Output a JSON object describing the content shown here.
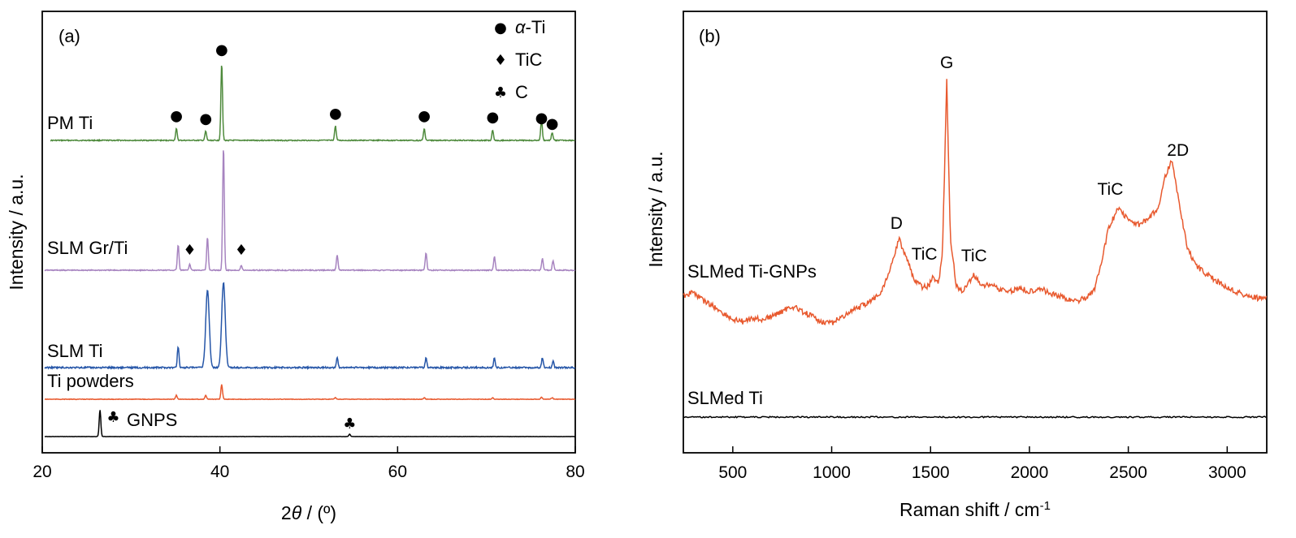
{
  "colors": {
    "pm_ti": "#4e8a3c",
    "slm_grti": "#a784c0",
    "slm_ti": "#2656a8",
    "ti_powders": "#e8592e",
    "gnps": "#000000",
    "slmed_ti_gnps": "#e8592e",
    "slmed_ti": "#000000"
  },
  "icons": {
    "alpha_ti": "filled-circle-icon",
    "tic": "filled-diamond-icon",
    "c": "club-icon"
  },
  "chart_data": [
    {
      "type": "line",
      "panel_label": "(a)",
      "xlabel_prefix": "2",
      "xlabel_theta": "θ",
      "xlabel_suffix": " / (º)",
      "ylabel": "Intensity / a.u.",
      "xlim": [
        20,
        80
      ],
      "xticks": [
        "20",
        "40",
        "60",
        "80"
      ],
      "legend": {
        "placement": "top-right",
        "entries": [
          {
            "marker": "●",
            "label_prefix": "α",
            "label_suffix": "-Ti"
          },
          {
            "marker": "♦",
            "label_prefix": "",
            "label_suffix": "TiC"
          },
          {
            "marker": "♣",
            "label_prefix": "",
            "label_suffix": "C"
          }
        ]
      },
      "series": [
        {
          "name": "PM Ti",
          "peaks": [
            [
              35.1,
              0.45
            ],
            [
              38.4,
              0.35
            ],
            [
              40.2,
              3.0
            ],
            [
              53.0,
              0.55
            ],
            [
              63.0,
              0.45
            ],
            [
              70.7,
              0.4
            ],
            [
              76.2,
              0.8
            ],
            [
              77.4,
              0.3
            ]
          ],
          "markers": [
            {
              "x": 35.1,
              "symbol": "●"
            },
            {
              "x": 38.4,
              "symbol": "●"
            },
            {
              "x": 40.2,
              "symbol": "●"
            },
            {
              "x": 53.0,
              "symbol": "●"
            },
            {
              "x": 63.0,
              "symbol": "●"
            },
            {
              "x": 70.7,
              "symbol": "●"
            },
            {
              "x": 76.2,
              "symbol": "●"
            },
            {
              "x": 77.4,
              "symbol": "●"
            }
          ]
        },
        {
          "name": "SLM Gr/Ti",
          "peaks": [
            [
              35.3,
              0.65
            ],
            [
              36.6,
              0.15
            ],
            [
              38.6,
              0.85
            ],
            [
              40.4,
              3.2
            ],
            [
              42.4,
              0.12
            ],
            [
              53.2,
              0.4
            ],
            [
              63.2,
              0.45
            ],
            [
              70.9,
              0.35
            ],
            [
              76.3,
              0.3
            ],
            [
              77.5,
              0.25
            ]
          ],
          "markers": [
            {
              "x": 36.6,
              "symbol": "♦"
            },
            {
              "x": 42.4,
              "symbol": "♦"
            }
          ]
        },
        {
          "name": "SLM Ti",
          "peaks": [
            [
              35.3,
              0.55
            ],
            [
              38.6,
              2.0
            ],
            [
              40.4,
              2.2
            ],
            [
              53.2,
              0.25
            ],
            [
              63.2,
              0.25
            ],
            [
              70.9,
              0.25
            ],
            [
              76.3,
              0.25
            ],
            [
              77.5,
              0.18
            ]
          ],
          "markers": []
        },
        {
          "name": "Ti powders",
          "peaks": [
            [
              35.1,
              0.12
            ],
            [
              38.4,
              0.12
            ],
            [
              40.2,
              0.45
            ],
            [
              53.0,
              0.05
            ],
            [
              63.0,
              0.05
            ],
            [
              70.7,
              0.05
            ],
            [
              76.2,
              0.06
            ],
            [
              77.4,
              0.05
            ]
          ],
          "markers": []
        },
        {
          "name": "GNPS",
          "peaks": [
            [
              26.5,
              0.55
            ],
            [
              54.6,
              0.05
            ]
          ],
          "markers": [
            {
              "x": 28.0,
              "symbol": "♣"
            },
            {
              "x": 54.6,
              "symbol": "♣"
            }
          ]
        }
      ]
    },
    {
      "type": "line",
      "panel_label": "(b)",
      "xlabel": "Raman shift / cm",
      "xlabel_sup": "-1",
      "ylabel": "Intensity / a.u.",
      "xlim": [
        250,
        3200
      ],
      "xticks": [
        "500",
        "1000",
        "1500",
        "2000",
        "2500",
        "3000"
      ],
      "series": [
        {
          "name": "SLMed Ti-GNPs",
          "peaks": [
            {
              "x": 1340,
              "label": "D"
            },
            {
              "x": 1510,
              "label": "TiC"
            },
            {
              "x": 1582,
              "label": "G"
            },
            {
              "x": 1720,
              "label": "TiC"
            },
            {
              "x": 2450,
              "label": "TiC"
            },
            {
              "x": 2710,
              "label": "2D"
            }
          ],
          "points": [
            [
              250,
              0.0
            ],
            [
              300,
              0.05
            ],
            [
              350,
              -0.05
            ],
            [
              400,
              -0.12
            ],
            [
              450,
              -0.2
            ],
            [
              500,
              -0.28
            ],
            [
              550,
              -0.3
            ],
            [
              600,
              -0.26
            ],
            [
              650,
              -0.28
            ],
            [
              700,
              -0.24
            ],
            [
              750,
              -0.18
            ],
            [
              800,
              -0.12
            ],
            [
              850,
              -0.18
            ],
            [
              900,
              -0.24
            ],
            [
              950,
              -0.3
            ],
            [
              1000,
              -0.32
            ],
            [
              1050,
              -0.25
            ],
            [
              1100,
              -0.18
            ],
            [
              1150,
              -0.12
            ],
            [
              1200,
              -0.05
            ],
            [
              1250,
              0.05
            ],
            [
              1300,
              0.35
            ],
            [
              1340,
              0.68
            ],
            [
              1380,
              0.45
            ],
            [
              1420,
              0.18
            ],
            [
              1460,
              0.1
            ],
            [
              1490,
              0.12
            ],
            [
              1510,
              0.22
            ],
            [
              1540,
              0.15
            ],
            [
              1560,
              0.5
            ],
            [
              1582,
              2.55
            ],
            [
              1600,
              0.7
            ],
            [
              1630,
              0.12
            ],
            [
              1660,
              0.05
            ],
            [
              1700,
              0.18
            ],
            [
              1720,
              0.25
            ],
            [
              1760,
              0.12
            ],
            [
              1800,
              0.15
            ],
            [
              1850,
              0.08
            ],
            [
              1900,
              0.05
            ],
            [
              1950,
              0.1
            ],
            [
              2000,
              0.05
            ],
            [
              2050,
              0.1
            ],
            [
              2100,
              0.04
            ],
            [
              2150,
              0.0
            ],
            [
              2200,
              -0.05
            ],
            [
              2250,
              -0.05
            ],
            [
              2300,
              0.0
            ],
            [
              2330,
              0.1
            ],
            [
              2360,
              0.35
            ],
            [
              2400,
              0.8
            ],
            [
              2450,
              1.05
            ],
            [
              2500,
              0.9
            ],
            [
              2550,
              0.85
            ],
            [
              2600,
              0.9
            ],
            [
              2650,
              1.05
            ],
            [
              2690,
              1.45
            ],
            [
              2720,
              1.6
            ],
            [
              2750,
              1.2
            ],
            [
              2800,
              0.55
            ],
            [
              2850,
              0.35
            ],
            [
              2900,
              0.25
            ],
            [
              2950,
              0.18
            ],
            [
              3000,
              0.1
            ],
            [
              3050,
              0.05
            ],
            [
              3100,
              0.0
            ],
            [
              3150,
              -0.02
            ],
            [
              3200,
              -0.03
            ]
          ]
        },
        {
          "name": "SLMed Ti",
          "points": [
            [
              250,
              0
            ],
            [
              3200,
              0
            ]
          ]
        }
      ]
    }
  ]
}
